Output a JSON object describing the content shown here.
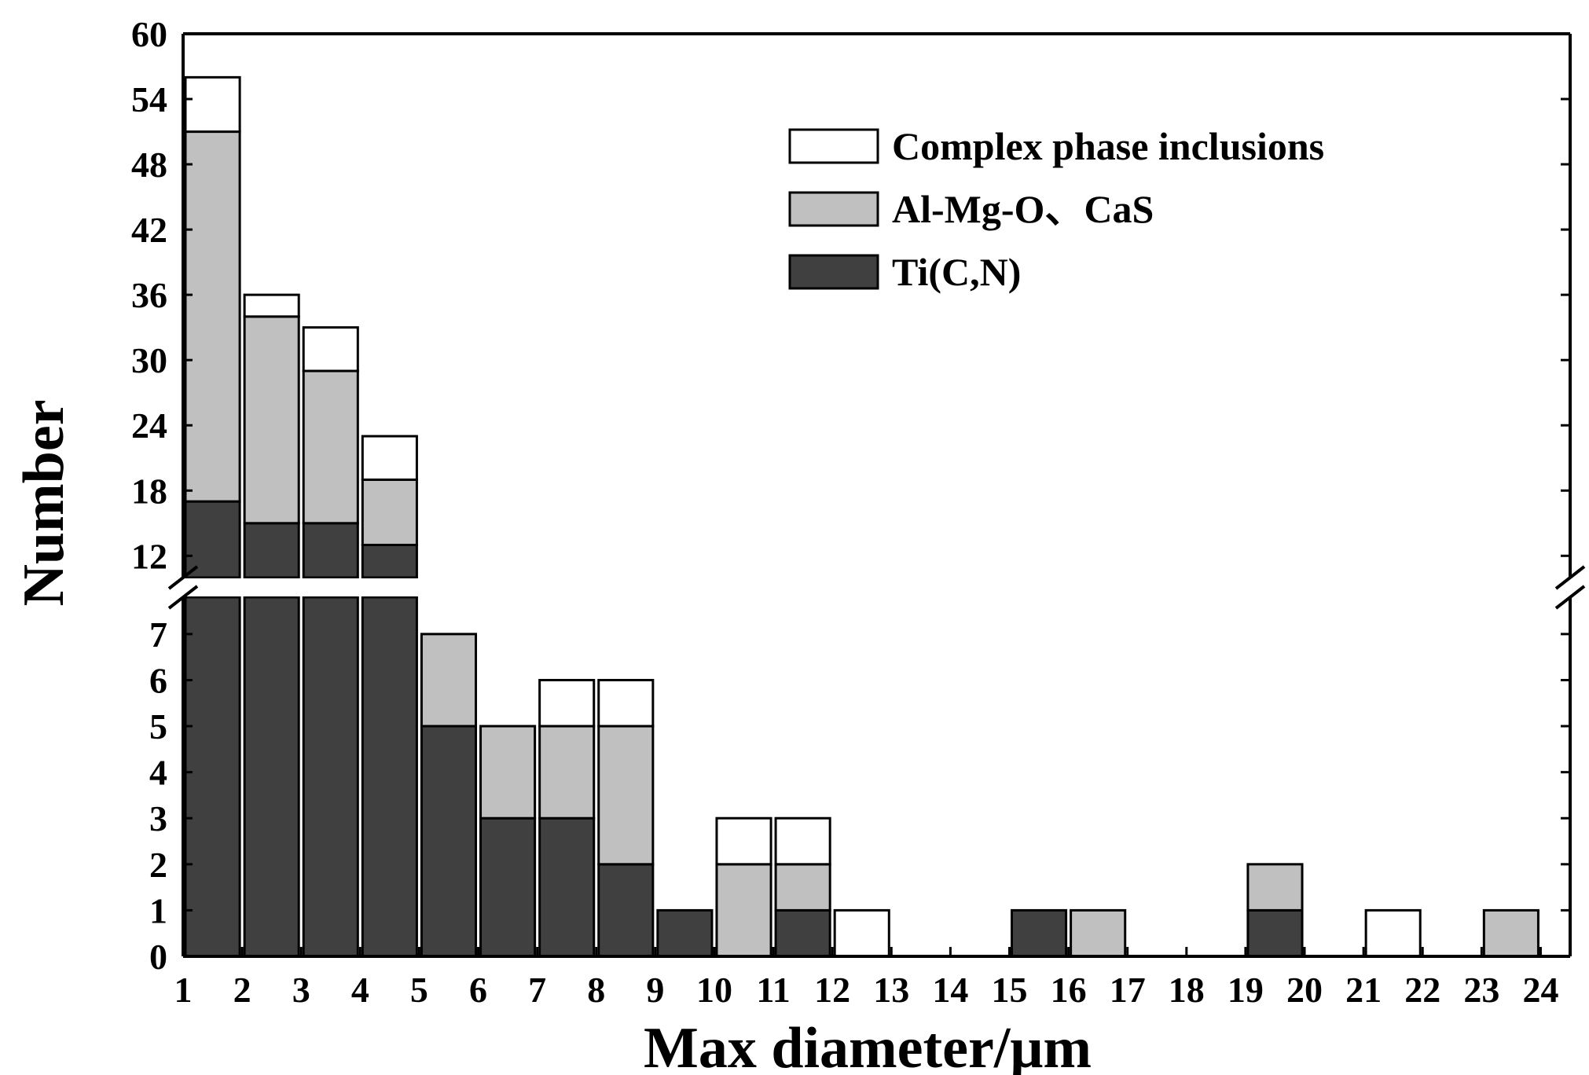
{
  "chart_data": {
    "type": "bar",
    "stacked": true,
    "xlabel": "Max diameter/μm",
    "ylabel": "Number",
    "x_ticks": [
      "1",
      "2",
      "3",
      "4",
      "5",
      "6",
      "7",
      "8",
      "9",
      "10",
      "11",
      "12",
      "13",
      "14",
      "15",
      "16",
      "17",
      "18",
      "19",
      "20",
      "21",
      "22",
      "23",
      "24"
    ],
    "bins": [
      {
        "from": 1,
        "to": 2
      },
      {
        "from": 2,
        "to": 3
      },
      {
        "from": 3,
        "to": 4
      },
      {
        "from": 4,
        "to": 5
      },
      {
        "from": 5,
        "to": 6
      },
      {
        "from": 6,
        "to": 7
      },
      {
        "from": 7,
        "to": 8
      },
      {
        "from": 8,
        "to": 9
      },
      {
        "from": 9,
        "to": 10
      },
      {
        "from": 10,
        "to": 11
      },
      {
        "from": 11,
        "to": 12
      },
      {
        "from": 12,
        "to": 13
      },
      {
        "from": 13,
        "to": 14
      },
      {
        "from": 14,
        "to": 15
      },
      {
        "from": 15,
        "to": 16
      },
      {
        "from": 16,
        "to": 17
      },
      {
        "from": 17,
        "to": 18
      },
      {
        "from": 18,
        "to": 19
      },
      {
        "from": 19,
        "to": 20
      },
      {
        "from": 20,
        "to": 21
      },
      {
        "from": 21,
        "to": 22
      },
      {
        "from": 22,
        "to": 23
      },
      {
        "from": 23,
        "to": 24
      }
    ],
    "series": [
      {
        "name": "Ti(C,N)",
        "color": "#404040",
        "values": [
          17,
          15,
          15,
          13,
          5,
          3,
          3,
          2,
          1,
          0,
          1,
          0,
          0,
          0,
          1,
          0,
          0,
          0,
          1,
          0,
          0,
          0,
          0
        ]
      },
      {
        "name": "Al-Mg-O、CaS",
        "color": "#c0c0c0",
        "values": [
          34,
          19,
          14,
          6,
          2,
          2,
          2,
          3,
          0,
          2,
          1,
          0,
          0,
          0,
          0,
          1,
          0,
          0,
          1,
          0,
          0,
          0,
          1
        ]
      },
      {
        "name": "Complex phase inclusions",
        "color": "#ffffff",
        "values": [
          5,
          2,
          4,
          4,
          0,
          0,
          1,
          1,
          0,
          1,
          1,
          1,
          0,
          0,
          0,
          0,
          0,
          0,
          0,
          0,
          1,
          0,
          0
        ]
      }
    ],
    "legend_order": [
      2,
      1,
      0
    ],
    "legend_position": "top-right",
    "y_axis_break": {
      "lower": [
        0,
        7.8
      ],
      "upper": [
        10,
        60
      ]
    },
    "y_ticks_lower": [
      0,
      1,
      2,
      3,
      4,
      5,
      6,
      7
    ],
    "y_ticks_upper": [
      12,
      18,
      24,
      30,
      36,
      42,
      48,
      54,
      60
    ],
    "grid": false
  }
}
